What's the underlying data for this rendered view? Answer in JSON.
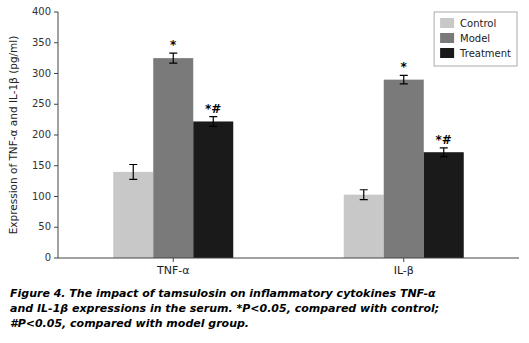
{
  "chart_data": {
    "type": "bar",
    "categories": [
      "TNF-α",
      "IL-β"
    ],
    "series": [
      {
        "name": "Control",
        "color": "#c8c8c8",
        "values": [
          140,
          103
        ],
        "errors": [
          12,
          8
        ]
      },
      {
        "name": "Model",
        "color": "#7a7a7a",
        "values": [
          325,
          290
        ],
        "errors": [
          8,
          7
        ],
        "annotation": "*"
      },
      {
        "name": "Treatment",
        "color": "#1a1a1a",
        "values": [
          222,
          172
        ],
        "errors": [
          8,
          7
        ],
        "annotation": "*#"
      }
    ],
    "ylabel": "Expression of TNF-α and IL-1β (pg/ml)",
    "ylim": [
      0,
      400
    ],
    "yticks": [
      0,
      50,
      100,
      150,
      200,
      250,
      300,
      350,
      400
    ],
    "legend": "upper right",
    "caption": [
      "Figure 4. The impact of tamsulosin on inflammatory cytokines TNF-α",
      "and IL-1β expressions in the serum. *P<0.05, compared with control;",
      "#P<0.05, compared with model group."
    ]
  }
}
